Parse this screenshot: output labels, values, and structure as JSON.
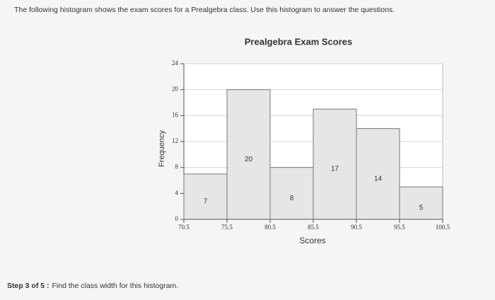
{
  "question": "The following histogram shows the exam scores for a Prealgebra class. Use this histogram to answer the questions.",
  "chart_data": {
    "type": "histogram",
    "title": "Prealgebra Exam Scores",
    "x_label": "Scores",
    "y_label": "Frequency",
    "bins": [
      70.5,
      75.5,
      80.5,
      85.5,
      90.5,
      95.5,
      100.5
    ],
    "values": [
      7,
      20,
      8,
      17,
      14,
      5
    ],
    "color": "#e6e6e6",
    "xlim": [
      70.5,
      100.5
    ],
    "ylim": [
      0,
      24
    ],
    "yticks": [
      0,
      4,
      8,
      12,
      16,
      20,
      24
    ],
    "grid": true
  },
  "step": {
    "label": "Step 3 of 5 :",
    "text": "Find the class width for this histogram."
  }
}
